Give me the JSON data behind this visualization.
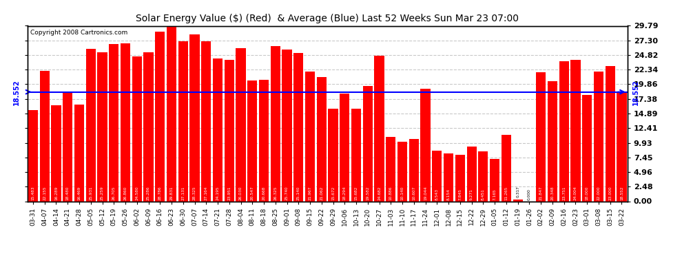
{
  "title": "Solar Energy Value ($) (Red)  & Average (Blue) Last 52 Weeks Sun Mar 23 07:00",
  "copyright": "Copyright 2008 Cartronics.com",
  "average": 18.552,
  "bar_color": "#ff0000",
  "avg_line_color": "#0000ff",
  "background_color": "#ffffff",
  "grid_color": "#bbbbbb",
  "ylim": [
    0,
    29.79
  ],
  "yticks": [
    0.0,
    2.48,
    4.96,
    7.45,
    9.93,
    12.41,
    14.89,
    17.38,
    19.86,
    22.34,
    24.82,
    27.3,
    29.79
  ],
  "categories": [
    "03-31",
    "04-07",
    "04-14",
    "04-21",
    "04-28",
    "05-05",
    "05-12",
    "05-19",
    "05-26",
    "06-02",
    "06-09",
    "06-16",
    "06-23",
    "06-30",
    "07-07",
    "07-14",
    "07-21",
    "07-28",
    "08-04",
    "08-11",
    "08-18",
    "08-25",
    "09-01",
    "09-08",
    "09-15",
    "09-22",
    "09-29",
    "10-06",
    "10-13",
    "10-20",
    "10-27",
    "11-03",
    "11-10",
    "11-17",
    "11-24",
    "12-01",
    "12-08",
    "12-15",
    "12-22",
    "12-29",
    "01-05",
    "01-12",
    "01-19",
    "01-26",
    "02-02",
    "02-09",
    "02-16",
    "02-23",
    "03-01",
    "03-08",
    "03-15",
    "03-22"
  ],
  "values": [
    15.483,
    22.155,
    16.289,
    18.48,
    16.469,
    25.931,
    25.259,
    26.705,
    26.86,
    24.58,
    25.286,
    28.786,
    29.831,
    27.131,
    28.325,
    27.164,
    24.195,
    23.951,
    26.03,
    20.547,
    20.668,
    26.325,
    25.74,
    25.14,
    21.967,
    21.062,
    15.672,
    18.294,
    15.682,
    19.582,
    24.682,
    10.886,
    10.14,
    10.607,
    19.044,
    8.543,
    8.154,
    7.845,
    9.271,
    8.451,
    7.165,
    11.265,
    0.317,
    0.0,
    21.847,
    20.348,
    23.751,
    24.004,
    18.0,
    22.0,
    23.0,
    18.552
  ]
}
